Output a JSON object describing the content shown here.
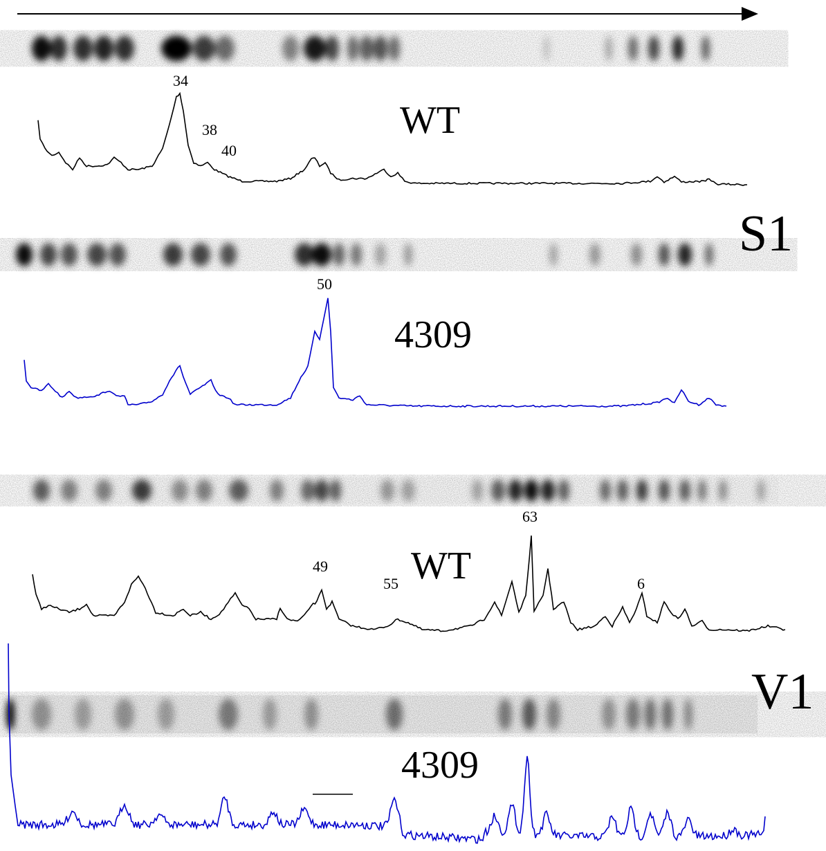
{
  "panels": [
    {
      "label": "S1",
      "lanes": [
        {
          "name": "WT",
          "peak_labels": [
            "34",
            "38",
            "40"
          ]
        },
        {
          "name": "4309",
          "peak_labels": [
            "50"
          ]
        }
      ]
    },
    {
      "label": "V1",
      "lanes": [
        {
          "name": "WT",
          "peak_labels": [
            "63",
            "49",
            "55",
            "6"
          ]
        },
        {
          "name": "4309"
        }
      ]
    }
  ]
}
